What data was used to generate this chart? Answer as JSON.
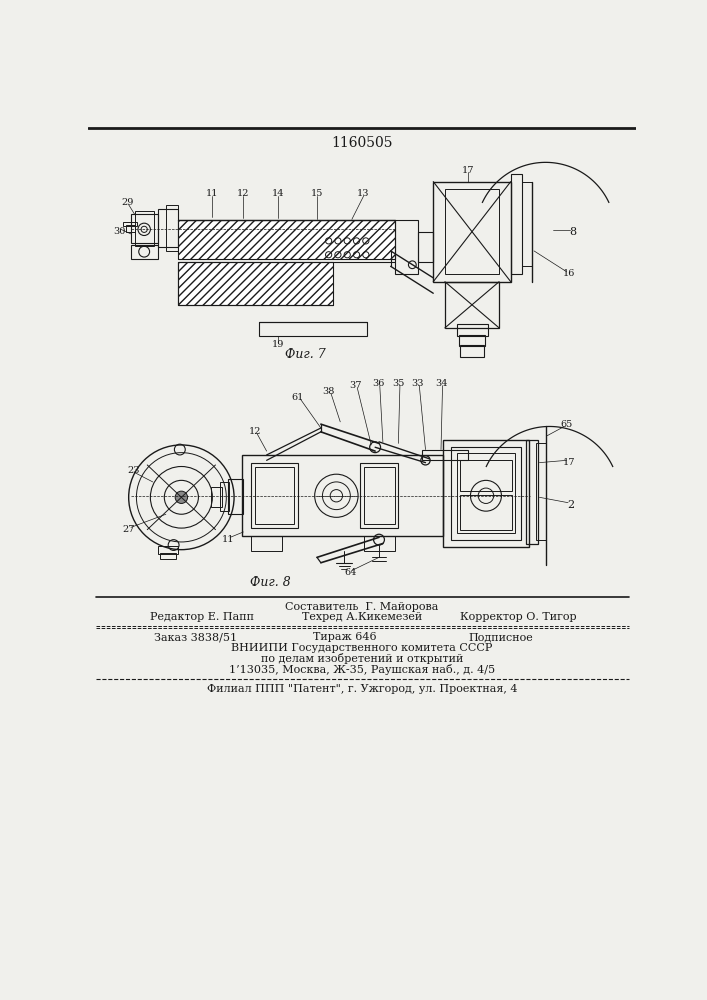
{
  "title": "1160505",
  "bg_color": "#f0f0ec",
  "line_color": "#1a1a1a",
  "fig7_label": "Фиг. 7",
  "fig8_label": "Фиг. 8",
  "footer_line1": "Составитель  Г. Майорова",
  "footer_line2_left": "Редактор Е. Папп",
  "footer_line2_mid": "Техред А.Кикемезей",
  "footer_line2_right": "Корректор О. Тигор",
  "footer_line3_a": "Заказ 3838/51",
  "footer_line3_b": "Тираж 646",
  "footer_line3_c": "Подписное",
  "footer_line4": "ВНИИПИ Государственного комитета СССР",
  "footer_line5": "по делам изобретений и открытий",
  "footer_line6": "1’13035, Москва, Ж-35, Раушская наб., д. 4/5",
  "footer_line7": "Филиал ППП \"Патент\", г. Ужгород, ул. Проектная, 4"
}
